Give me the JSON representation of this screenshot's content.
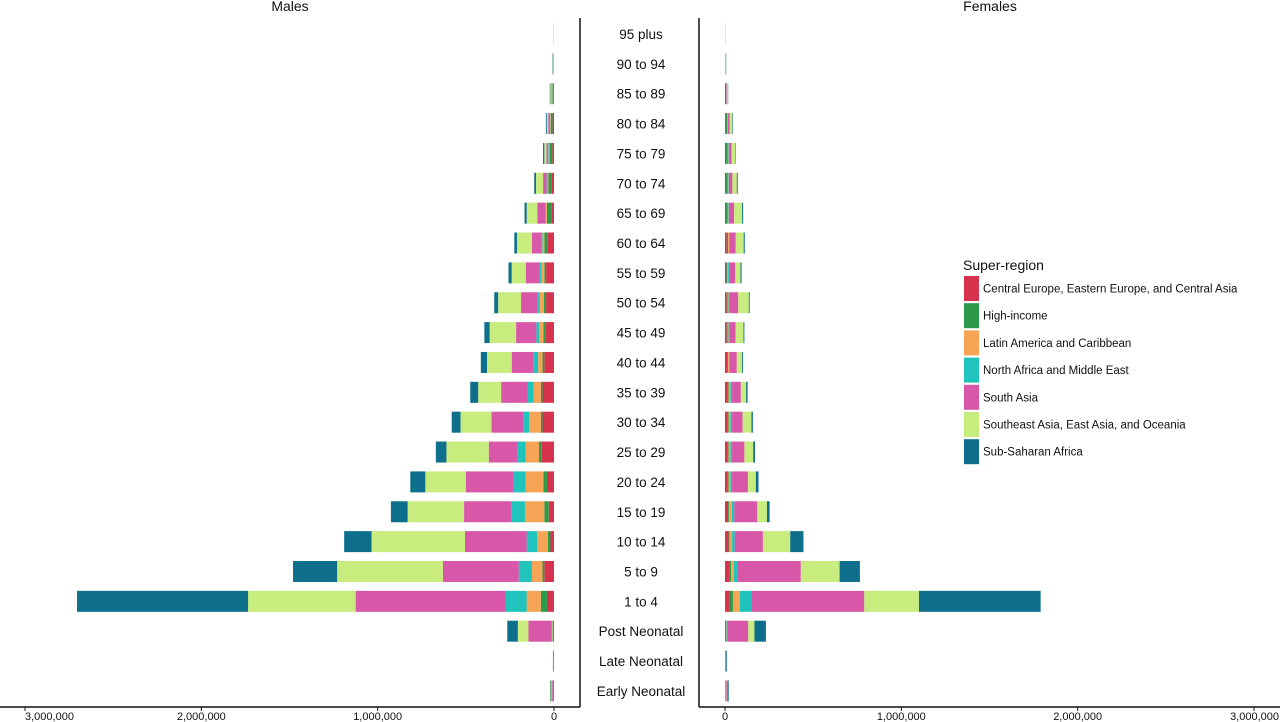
{
  "chart_data": {
    "type": "bar",
    "orientation": "horizontal",
    "layout": "population-pyramid",
    "panels": [
      "Males",
      "Females"
    ],
    "xlim": [
      0,
      3000000
    ],
    "x_ticks": [
      0,
      1000000,
      2000000,
      3000000
    ],
    "x_tick_labels": [
      "0",
      "1,000,000",
      "2,000,000",
      "3,000,000"
    ],
    "categories": [
      "95 plus",
      "90 to 94",
      "85 to 89",
      "80 to 84",
      "75 to 79",
      "70 to 74",
      "65 to 69",
      "60 to 64",
      "55 to 59",
      "50 to 54",
      "45 to 49",
      "40 to 44",
      "35 to 39",
      "30 to 34",
      "25 to 29",
      "20 to 24",
      "15 to 19",
      "10 to 14",
      "5 to 9",
      "1 to 4",
      "Post Neonatal",
      "Late Neonatal",
      "Early Neonatal"
    ],
    "legend_title": "Super-region",
    "legend_position": "right",
    "grid": false,
    "series": [
      {
        "name": "Central Europe, Eastern Europe, and Central Asia",
        "color": "#d7334f",
        "males": [
          200,
          1000,
          4000,
          8000,
          10000,
          12000,
          15000,
          35000,
          45000,
          45000,
          50000,
          55000,
          65000,
          65000,
          70000,
          40000,
          30000,
          20000,
          55000,
          40000,
          5000,
          0,
          3000
        ],
        "females": [
          200,
          1000,
          3000,
          5000,
          6000,
          6000,
          6000,
          10000,
          8000,
          10000,
          10000,
          12000,
          15000,
          15000,
          15000,
          15000,
          18000,
          20000,
          25000,
          25000,
          5000,
          0,
          2000
        ]
      },
      {
        "name": "High-income",
        "color": "#2d9a48",
        "males": [
          200,
          1000,
          4000,
          10000,
          15000,
          20000,
          25000,
          20000,
          10000,
          12000,
          10000,
          10000,
          10000,
          10000,
          15000,
          20000,
          25000,
          15000,
          10000,
          35000,
          2000,
          1000,
          2000
        ],
        "females": [
          200,
          1000,
          3000,
          8000,
          10000,
          10000,
          10000,
          8000,
          5000,
          5000,
          5000,
          5000,
          5000,
          5000,
          5000,
          5000,
          5000,
          5000,
          10000,
          20000,
          2000,
          1000,
          1000
        ]
      },
      {
        "name": "Latin America and Caribbean",
        "color": "#f5a555",
        "males": [
          200,
          500,
          2000,
          3000,
          5000,
          5000,
          5000,
          10000,
          15000,
          25000,
          25000,
          25000,
          40000,
          65000,
          75000,
          100000,
          110000,
          60000,
          60000,
          80000,
          3000,
          0,
          1000
        ],
        "females": [
          200,
          500,
          1000,
          2000,
          3000,
          3000,
          3000,
          5000,
          5000,
          5000,
          5000,
          5000,
          10000,
          10000,
          10000,
          10000,
          15000,
          15000,
          15000,
          40000,
          2000,
          0,
          1000
        ]
      },
      {
        "name": "North Africa and Middle East",
        "color": "#20c4bc",
        "males": [
          0,
          500,
          1000,
          2000,
          3000,
          5000,
          5000,
          5000,
          10000,
          10000,
          15000,
          25000,
          35000,
          35000,
          45000,
          70000,
          75000,
          60000,
          75000,
          120000,
          5000,
          0,
          1000
        ],
        "females": [
          0,
          500,
          1000,
          2000,
          3000,
          3000,
          3000,
          3000,
          5000,
          5000,
          5000,
          5000,
          10000,
          10000,
          10000,
          10000,
          15000,
          15000,
          20000,
          65000,
          3000,
          0,
          1000
        ]
      },
      {
        "name": "South Asia",
        "color": "#d857a8",
        "males": [
          300,
          1000,
          4000,
          10000,
          10000,
          20000,
          45000,
          55000,
          80000,
          95000,
          115000,
          125000,
          150000,
          180000,
          165000,
          270000,
          270000,
          350000,
          430000,
          850000,
          130000,
          1000,
          8000
        ],
        "females": [
          300,
          1000,
          3000,
          10000,
          15000,
          20000,
          30000,
          35000,
          35000,
          50000,
          35000,
          40000,
          50000,
          60000,
          70000,
          90000,
          130000,
          160000,
          360000,
          640000,
          120000,
          2000,
          5000
        ]
      },
      {
        "name": "Southeast Asia, East Asia, and Oceania",
        "color": "#c8ec7d",
        "males": [
          500,
          3000,
          6000,
          8000,
          12000,
          40000,
          60000,
          85000,
          80000,
          130000,
          150000,
          140000,
          130000,
          175000,
          240000,
          230000,
          320000,
          530000,
          600000,
          610000,
          60000,
          1000,
          5000
        ],
        "females": [
          500,
          3000,
          5000,
          15000,
          20000,
          25000,
          45000,
          45000,
          30000,
          60000,
          45000,
          30000,
          30000,
          50000,
          50000,
          45000,
          55000,
          155000,
          220000,
          310000,
          35000,
          1000,
          3000
        ]
      },
      {
        "name": "Sub-Saharan Africa",
        "color": "#0e6f8d",
        "males": [
          300,
          2000,
          3000,
          5000,
          7000,
          10000,
          12000,
          15000,
          18000,
          22000,
          30000,
          35000,
          45000,
          50000,
          60000,
          85000,
          95000,
          155000,
          250000,
          970000,
          60000,
          3000,
          3000
        ],
        "females": [
          300,
          1000,
          2000,
          3000,
          3000,
          5000,
          6000,
          6000,
          6000,
          5000,
          5000,
          5000,
          8000,
          8000,
          10000,
          15000,
          15000,
          75000,
          115000,
          690000,
          65000,
          6000,
          8000
        ]
      }
    ]
  }
}
